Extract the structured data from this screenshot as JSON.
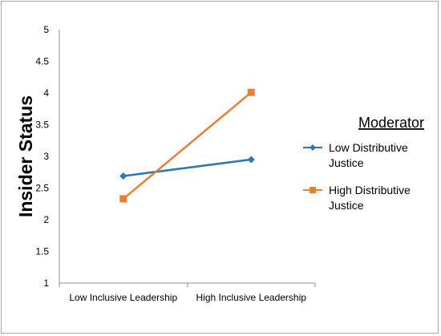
{
  "chart_data": {
    "type": "line",
    "categories": [
      "Low Inclusive Leadership",
      "High Inclusive Leadership"
    ],
    "ylabel": "Insider Status",
    "xlabel": "",
    "ylim": [
      1,
      5
    ],
    "yticks": [
      "1",
      "1.5",
      "2",
      "2.5",
      "3",
      "3.5",
      "4",
      "4.5",
      "5"
    ],
    "grid": false,
    "legend": {
      "title": "Moderator",
      "position": "right",
      "entries": [
        {
          "line1": "Low Distributive",
          "line2": "Justice"
        },
        {
          "line1": "High Distributive",
          "line2": "Justice"
        }
      ]
    },
    "series": [
      {
        "name": "Low Distributive Justice",
        "values": [
          2.69,
          2.95
        ],
        "color": "#2e75b6",
        "marker": "diamond"
      },
      {
        "name": "High Distributive Justice",
        "values": [
          2.33,
          4.01
        ],
        "color": "#ed7d31",
        "marker": "square"
      }
    ]
  }
}
